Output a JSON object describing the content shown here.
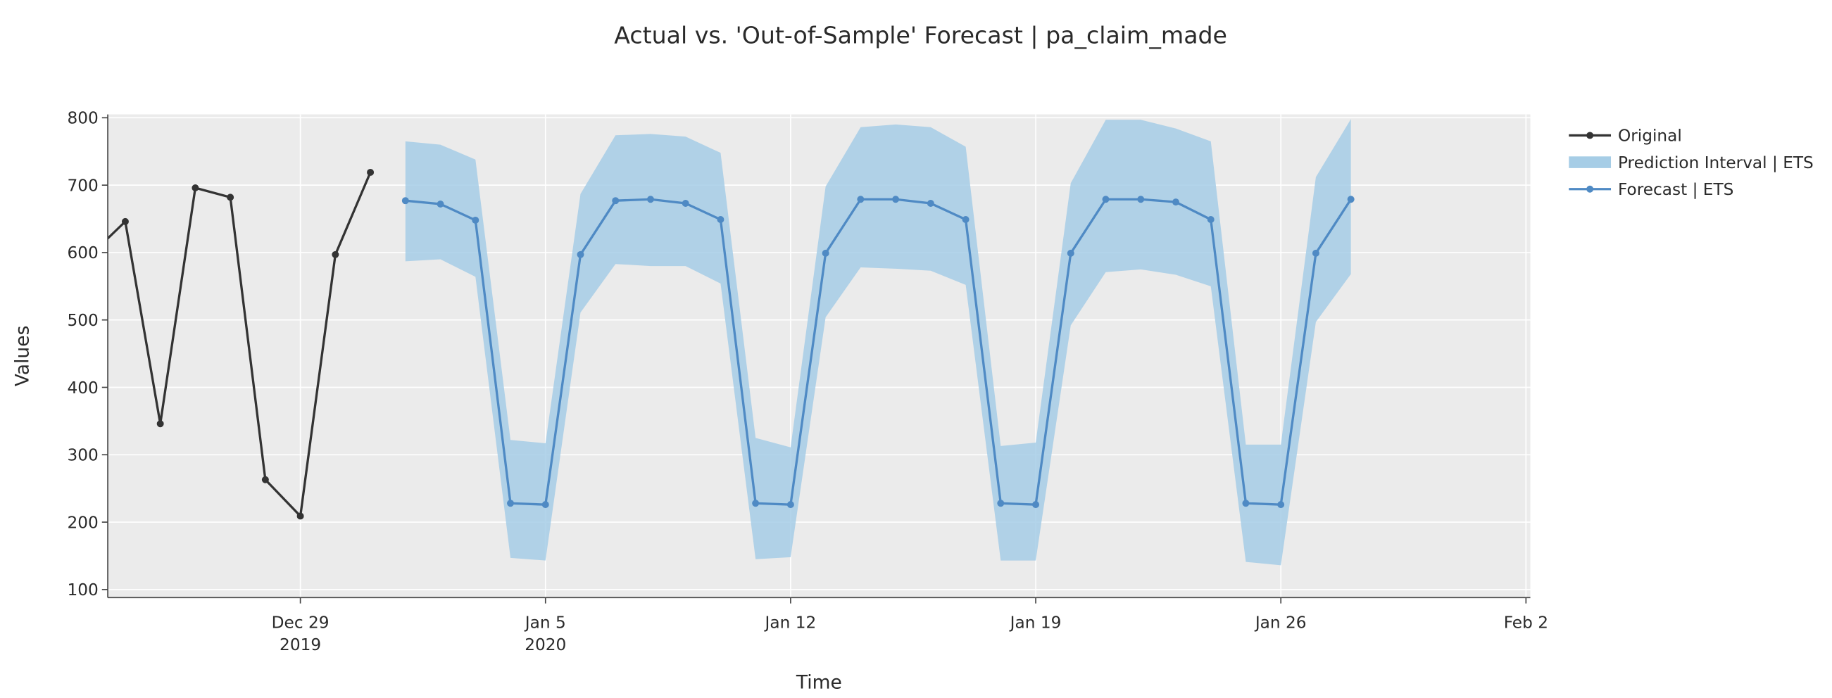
{
  "chart_data": {
    "type": "line",
    "title": "Actual vs. 'Out-of-Sample' Forecast | pa_claim_made",
    "x_label": "Time",
    "y_label": "Values",
    "xlim": [
      "2019-12-23T12:00",
      "2020-02-02T03:00"
    ],
    "xticks": [
      {
        "value": "2019-12-29",
        "label": [
          "Dec 29",
          "2019"
        ]
      },
      {
        "value": "2020-01-05",
        "label": [
          "Jan 5",
          "2020"
        ]
      },
      {
        "value": "2020-01-12",
        "label": "Jan 12"
      },
      {
        "value": "2020-01-19",
        "label": "Jan 19"
      },
      {
        "value": "2020-01-26",
        "label": "Jan 26"
      },
      {
        "value": "2020-02-02",
        "label": "Feb 2"
      }
    ],
    "ylim": [
      88,
      805
    ],
    "yticks": [
      100,
      200,
      300,
      400,
      500,
      600,
      700,
      800
    ],
    "grid": true,
    "legend": "outside-right",
    "series": [
      {
        "name": "Original",
        "color": "#333333",
        "kind": "line",
        "x": [
          "2019-12-23",
          "2019-12-24",
          "2019-12-25",
          "2019-12-26",
          "2019-12-27",
          "2019-12-28",
          "2019-12-29",
          "2019-12-30",
          "2019-12-31"
        ],
        "values": [
          596,
          646,
          346,
          696,
          682,
          263,
          209,
          597,
          719
        ]
      },
      {
        "name": "Prediction Interval | ETS",
        "color": "#a6cde6",
        "kind": "band",
        "x": [
          "2020-01-01",
          "2020-01-02",
          "2020-01-03",
          "2020-01-04",
          "2020-01-05",
          "2020-01-06",
          "2020-01-07",
          "2020-01-08",
          "2020-01-09",
          "2020-01-10",
          "2020-01-11",
          "2020-01-12",
          "2020-01-13",
          "2020-01-14",
          "2020-01-15",
          "2020-01-16",
          "2020-01-17",
          "2020-01-18",
          "2020-01-19",
          "2020-01-20",
          "2020-01-21",
          "2020-01-22",
          "2020-01-23",
          "2020-01-24",
          "2020-01-25",
          "2020-01-26",
          "2020-01-27",
          "2020-01-28"
        ],
        "upper": [
          765,
          760,
          738,
          322,
          317,
          687,
          774,
          776,
          772,
          748,
          325,
          311,
          698,
          786,
          790,
          786,
          757,
          313,
          318,
          703,
          797,
          797,
          784,
          765,
          315,
          315,
          712,
          798
        ],
        "lower": [
          587,
          590,
          564,
          147,
          143,
          511,
          583,
          580,
          580,
          554,
          145,
          148,
          504,
          578,
          576,
          573,
          552,
          143,
          143,
          492,
          571,
          575,
          567,
          550,
          141,
          136,
          497,
          568
        ]
      },
      {
        "name": "Forecast | ETS",
        "color": "#4f8ac4",
        "kind": "line",
        "x": [
          "2020-01-01",
          "2020-01-02",
          "2020-01-03",
          "2020-01-04",
          "2020-01-05",
          "2020-01-06",
          "2020-01-07",
          "2020-01-08",
          "2020-01-09",
          "2020-01-10",
          "2020-01-11",
          "2020-01-12",
          "2020-01-13",
          "2020-01-14",
          "2020-01-15",
          "2020-01-16",
          "2020-01-17",
          "2020-01-18",
          "2020-01-19",
          "2020-01-20",
          "2020-01-21",
          "2020-01-22",
          "2020-01-23",
          "2020-01-24",
          "2020-01-25",
          "2020-01-26",
          "2020-01-27",
          "2020-01-28"
        ],
        "values": [
          677,
          672,
          648,
          228,
          226,
          597,
          677,
          679,
          673,
          649,
          228,
          226,
          599,
          679,
          679,
          673,
          649,
          228,
          226,
          599,
          679,
          679,
          675,
          649,
          228,
          226,
          599,
          679
        ]
      }
    ]
  }
}
